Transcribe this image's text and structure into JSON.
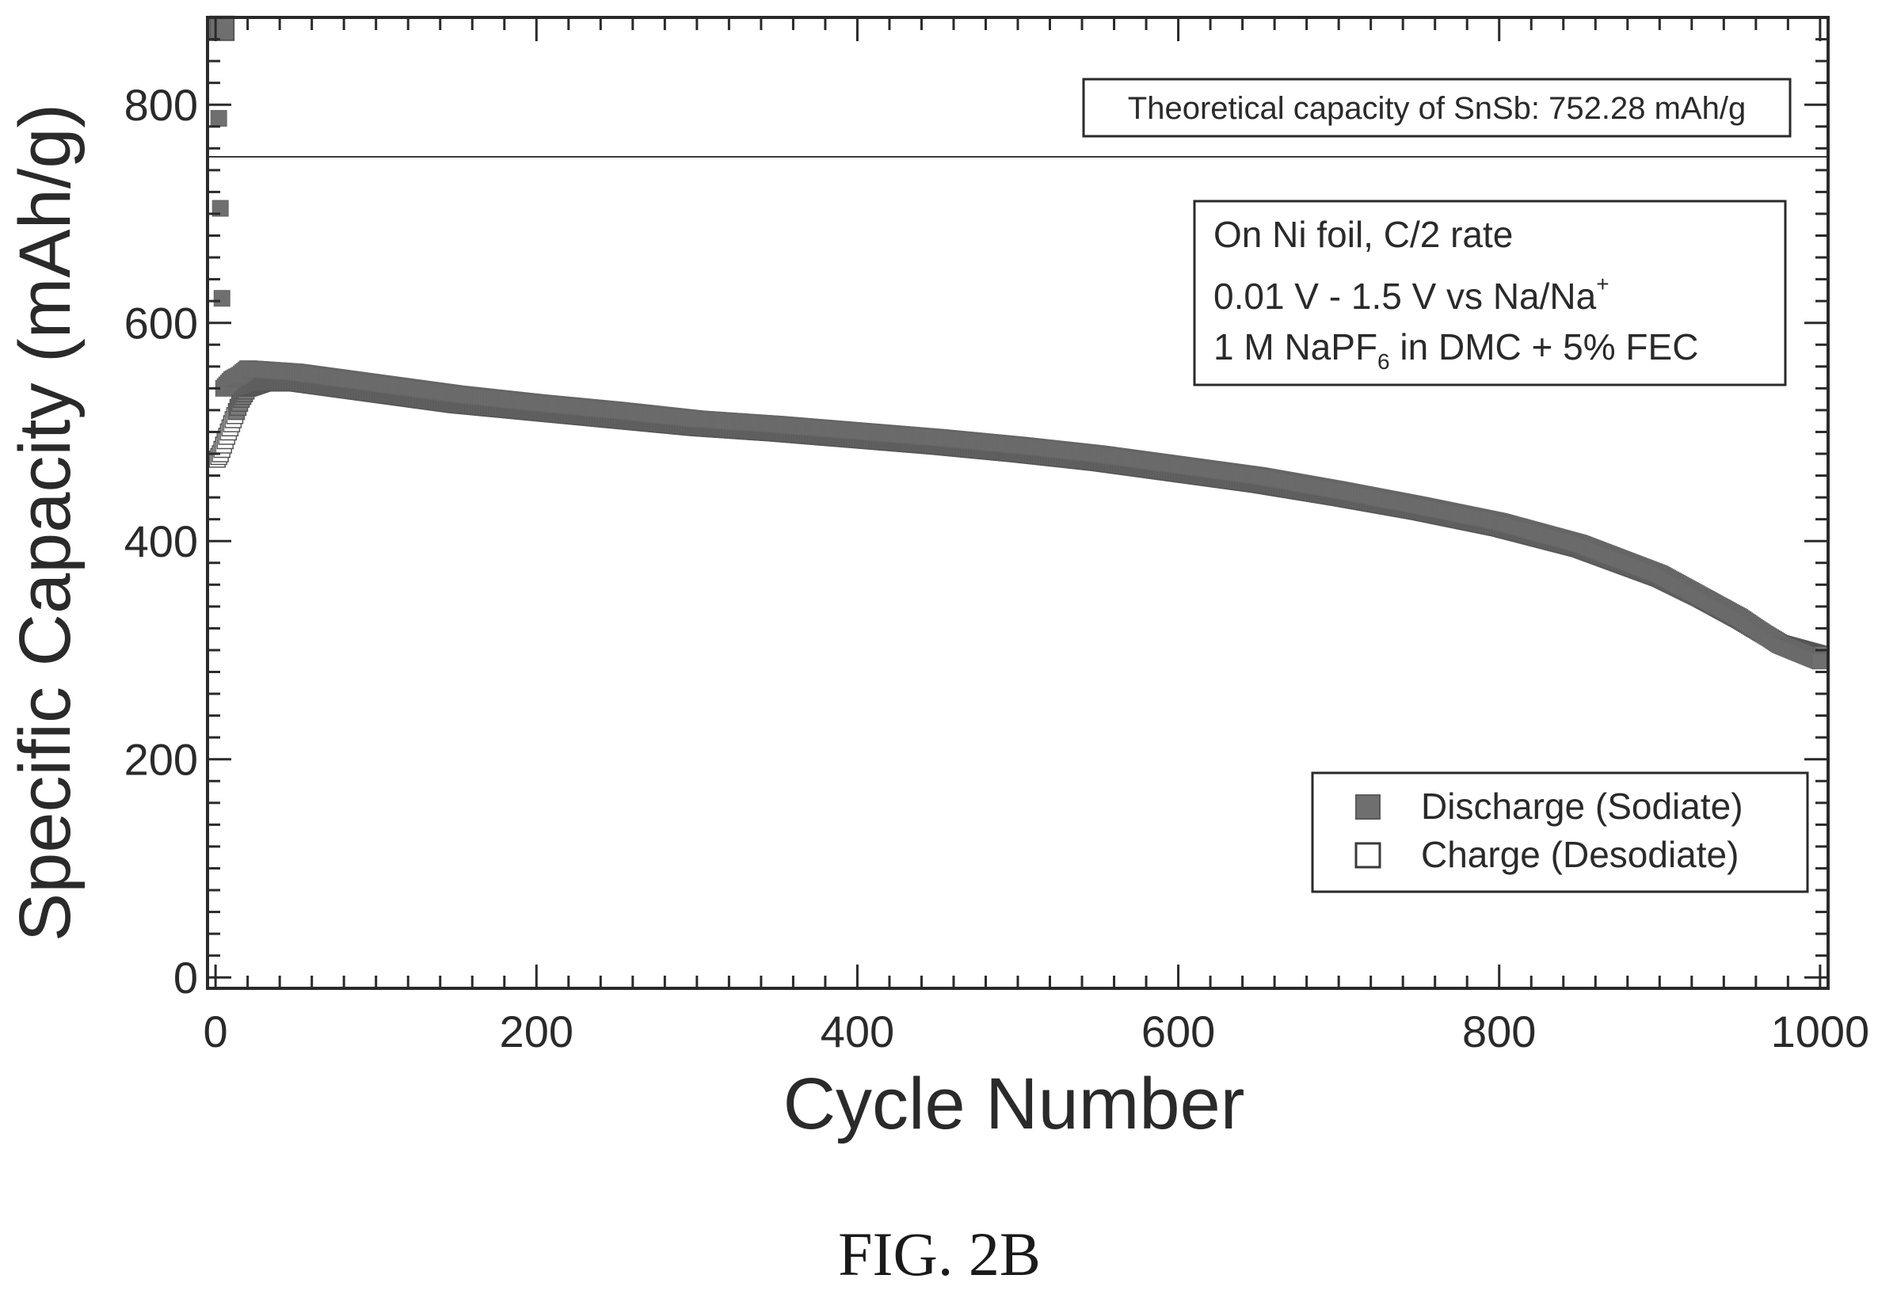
{
  "chart_data": {
    "type": "scatter",
    "xlabel": "Cycle Number",
    "ylabel": "Specific Capacity (mAh/g)",
    "xlim": [
      -5,
      1005
    ],
    "ylim": [
      -10,
      880
    ],
    "xticks": [
      "0",
      "200",
      "400",
      "600",
      "800",
      "1000"
    ],
    "yticks": [
      "0",
      "200",
      "400",
      "600",
      "800"
    ],
    "grid": false,
    "legend_position": "bottom-right",
    "reference_line": {
      "value": 752.28,
      "label": "Theoretical capacity of SnSb: 752.28 mAh/g"
    },
    "conditions": {
      "line1": "On Ni foil, C/2 rate",
      "line2_main": "0.01 V - 1.5 V vs Na/Na",
      "line2_sup": "+",
      "line3_pre": "1 M NaPF",
      "line3_sub": "6",
      "line3_post": " in DMC + 5% FEC"
    },
    "series": [
      {
        "name": "Discharge (Sodiate)",
        "marker": "filled-square",
        "color": "#6f6f6f",
        "x": [
          1,
          5,
          10,
          15,
          20,
          30,
          50,
          75,
          100,
          150,
          200,
          250,
          300,
          350,
          400,
          450,
          500,
          550,
          600,
          650,
          700,
          750,
          800,
          850,
          900,
          925,
          950,
          975,
          1000
        ],
        "y": [
          870,
          540,
          548,
          552,
          558,
          557,
          555,
          550,
          545,
          535,
          527,
          520,
          512,
          507,
          501,
          495,
          488,
          480,
          470,
          460,
          447,
          433,
          418,
          398,
          370,
          350,
          330,
          305,
          290
        ]
      },
      {
        "name": "Charge (Desodiate)",
        "marker": "open-square",
        "color": "#6f6f6f",
        "x": [
          1,
          3,
          5,
          8,
          12,
          16,
          20,
          30,
          50,
          75,
          100,
          150,
          200,
          250,
          300,
          350,
          400,
          450,
          500,
          550,
          600,
          650,
          700,
          750,
          800,
          850,
          900,
          925,
          950,
          975,
          1000
        ],
        "y": [
          475,
          480,
          488,
          500,
          515,
          530,
          540,
          545,
          545,
          540,
          535,
          525,
          518,
          511,
          504,
          499,
          493,
          487,
          480,
          472,
          462,
          452,
          440,
          427,
          412,
          393,
          366,
          348,
          328,
          306,
          296
        ]
      }
    ]
  },
  "caption": "FIG. 2B"
}
